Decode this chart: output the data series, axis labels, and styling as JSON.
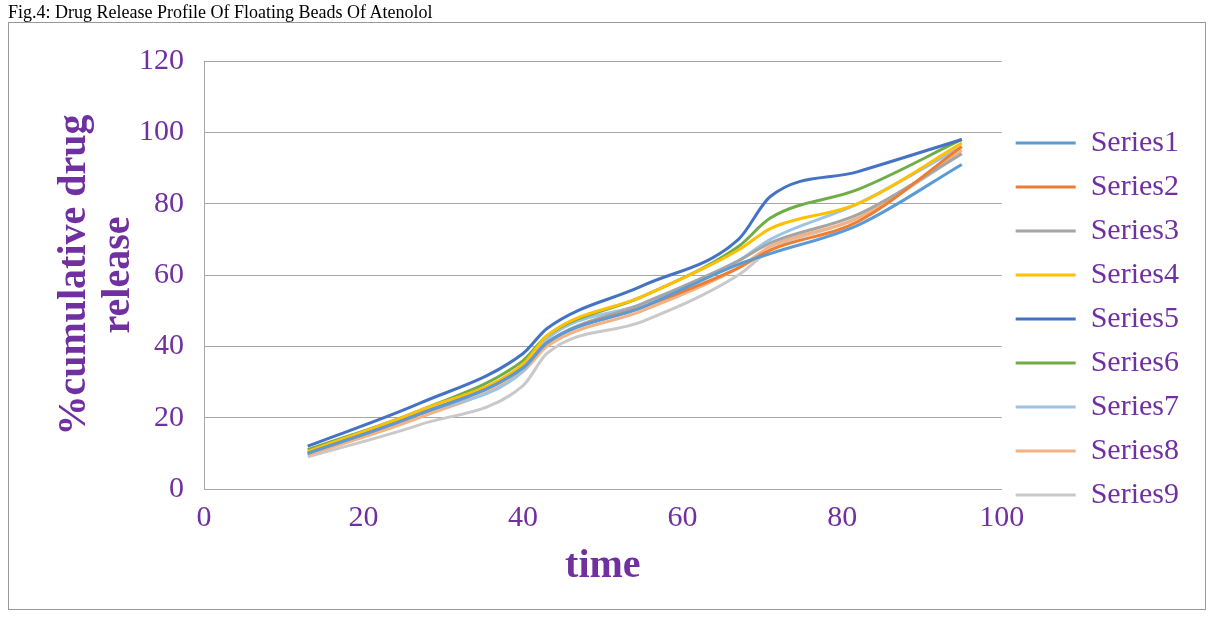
{
  "chart_data": {
    "type": "line",
    "title": "Fig.4: Drug Release Profile Of Floating Beads Of Atenolol",
    "xlabel": "time",
    "ylabel": "%cumulative drug release",
    "x": [
      13,
      27,
      40,
      43,
      55,
      67,
      71,
      82,
      95
    ],
    "series": [
      {
        "name": "Series1",
        "color": "#5b9bd5",
        "values": [
          10,
          21,
          34,
          41,
          51,
          63,
          66,
          74,
          91
        ]
      },
      {
        "name": "Series2",
        "color": "#ed7d31",
        "values": [
          10,
          21,
          34,
          41,
          51,
          62,
          67,
          75,
          96
        ]
      },
      {
        "name": "Series3",
        "color": "#a5a5a5",
        "values": [
          10,
          21,
          34,
          41,
          52,
          64,
          69,
          77,
          94
        ]
      },
      {
        "name": "Series4",
        "color": "#ffc000",
        "values": [
          10.5,
          22,
          35,
          43,
          54,
          67,
          73,
          80,
          97
        ]
      },
      {
        "name": "Series5",
        "color": "#4472c4",
        "values": [
          12,
          24,
          38,
          45,
          57,
          70,
          82,
          89,
          98
        ]
      },
      {
        "name": "Series6",
        "color": "#70ad47",
        "values": [
          11,
          22,
          36,
          43,
          54,
          68,
          76,
          84,
          98
        ]
      },
      {
        "name": "Series7",
        "color": "#9dc3e6",
        "values": [
          10,
          21,
          33,
          42,
          52,
          64,
          70,
          80,
          96
        ]
      },
      {
        "name": "Series8",
        "color": "#f4b183",
        "values": [
          9.5,
          20,
          33,
          40,
          50,
          62,
          68,
          76,
          95
        ]
      },
      {
        "name": "Series9",
        "color": "#c9c9c9",
        "values": [
          9,
          18,
          29,
          38,
          47,
          60,
          67,
          76,
          94
        ]
      }
    ],
    "xlim": [
      0,
      100
    ],
    "xticks": [
      0,
      20,
      40,
      60,
      80,
      100
    ],
    "ylim": [
      0,
      120
    ],
    "yticks": [
      0,
      20,
      40,
      60,
      80,
      100,
      120
    ],
    "grid": "y",
    "legend": "right",
    "marker": "none",
    "line_style": "solid"
  }
}
